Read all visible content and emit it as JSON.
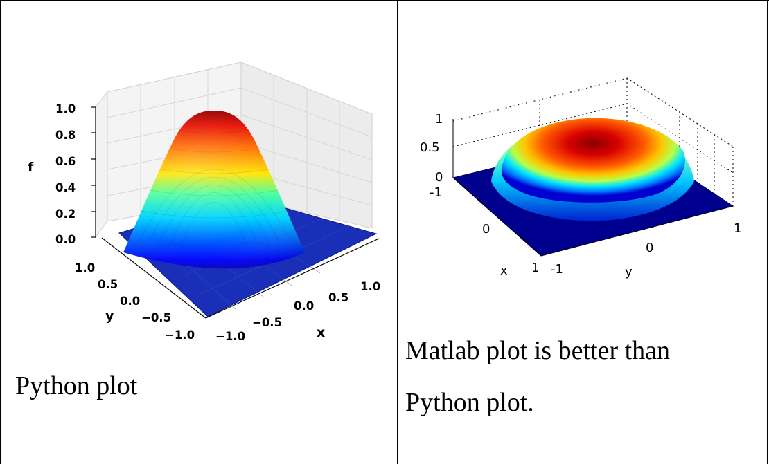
{
  "left_cell": {
    "caption": "Python plot"
  },
  "right_cell": {
    "caption_line1": "Matlab plot is better than",
    "caption_line2": "Python plot."
  },
  "chart_data": [
    {
      "type": "surface3d",
      "renderer": "python-matplotlib",
      "colormap": "jet",
      "zlabel": "f",
      "xlabel": "x",
      "ylabel": "y",
      "xlim": [
        -1.0,
        1.0
      ],
      "ylim": [
        -1.0,
        1.0
      ],
      "zlim": [
        0.0,
        1.0
      ],
      "xticks": [
        "−1.0",
        "−0.5",
        "0.0",
        "0.5",
        "1.0"
      ],
      "yticks": [
        "−1.0",
        "−0.5",
        "0.0",
        "0.5",
        "1.0"
      ],
      "zticks": [
        "0.0",
        "0.2",
        "0.4",
        "0.6",
        "0.8",
        "1.0"
      ],
      "grid": true,
      "surface": "dome peaking at f = 1.0 at x = 0, y = 0, falling to 0 at radius 1; flat at f = 0 outside",
      "peak": {
        "x": 0.0,
        "y": 0.0,
        "f": 1.0
      }
    },
    {
      "type": "surface3d",
      "renderer": "matlab",
      "colormap": "jet",
      "xlabel": "x",
      "ylabel": "y",
      "xlim": [
        -1,
        1
      ],
      "ylim": [
        -1,
        1
      ],
      "zlim": [
        0,
        1
      ],
      "xticks": [
        "-1",
        "0",
        "1"
      ],
      "yticks": [
        "-1",
        "0",
        "1"
      ],
      "zticks": [
        "0",
        "0.5",
        "1"
      ],
      "grid": "dotted",
      "surface": "flattened dome peaking near 1 at the center, dropping to 0 at radius 1; flat at 0 outside",
      "peak": {
        "x": 0,
        "y": 0,
        "f": 1
      }
    }
  ]
}
